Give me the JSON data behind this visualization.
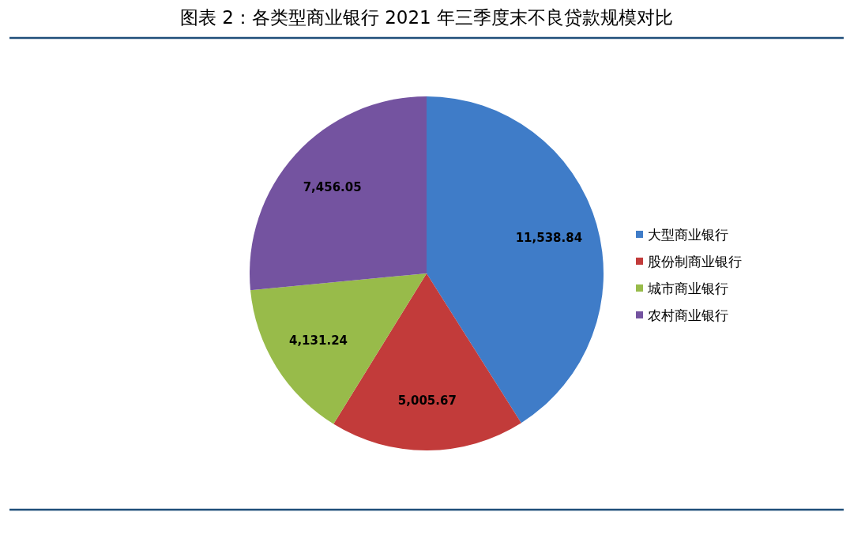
{
  "chart_data": {
    "type": "pie",
    "title": "图表 2：各类型商业银行 2021 年三季度末不良贷款规模对比",
    "categories": [
      "大型商业银行",
      "股份制商业银行",
      "城市商业银行",
      "农村商业银行"
    ],
    "values": [
      11538.84,
      5005.67,
      4131.24,
      7456.05
    ],
    "value_labels": [
      "11,538.84",
      "5,005.67",
      "4,131.24",
      "7,456.05"
    ],
    "colors": [
      "#3f7cc8",
      "#c23b3a",
      "#98bb4a",
      "#7453a0"
    ],
    "legend": "right"
  }
}
